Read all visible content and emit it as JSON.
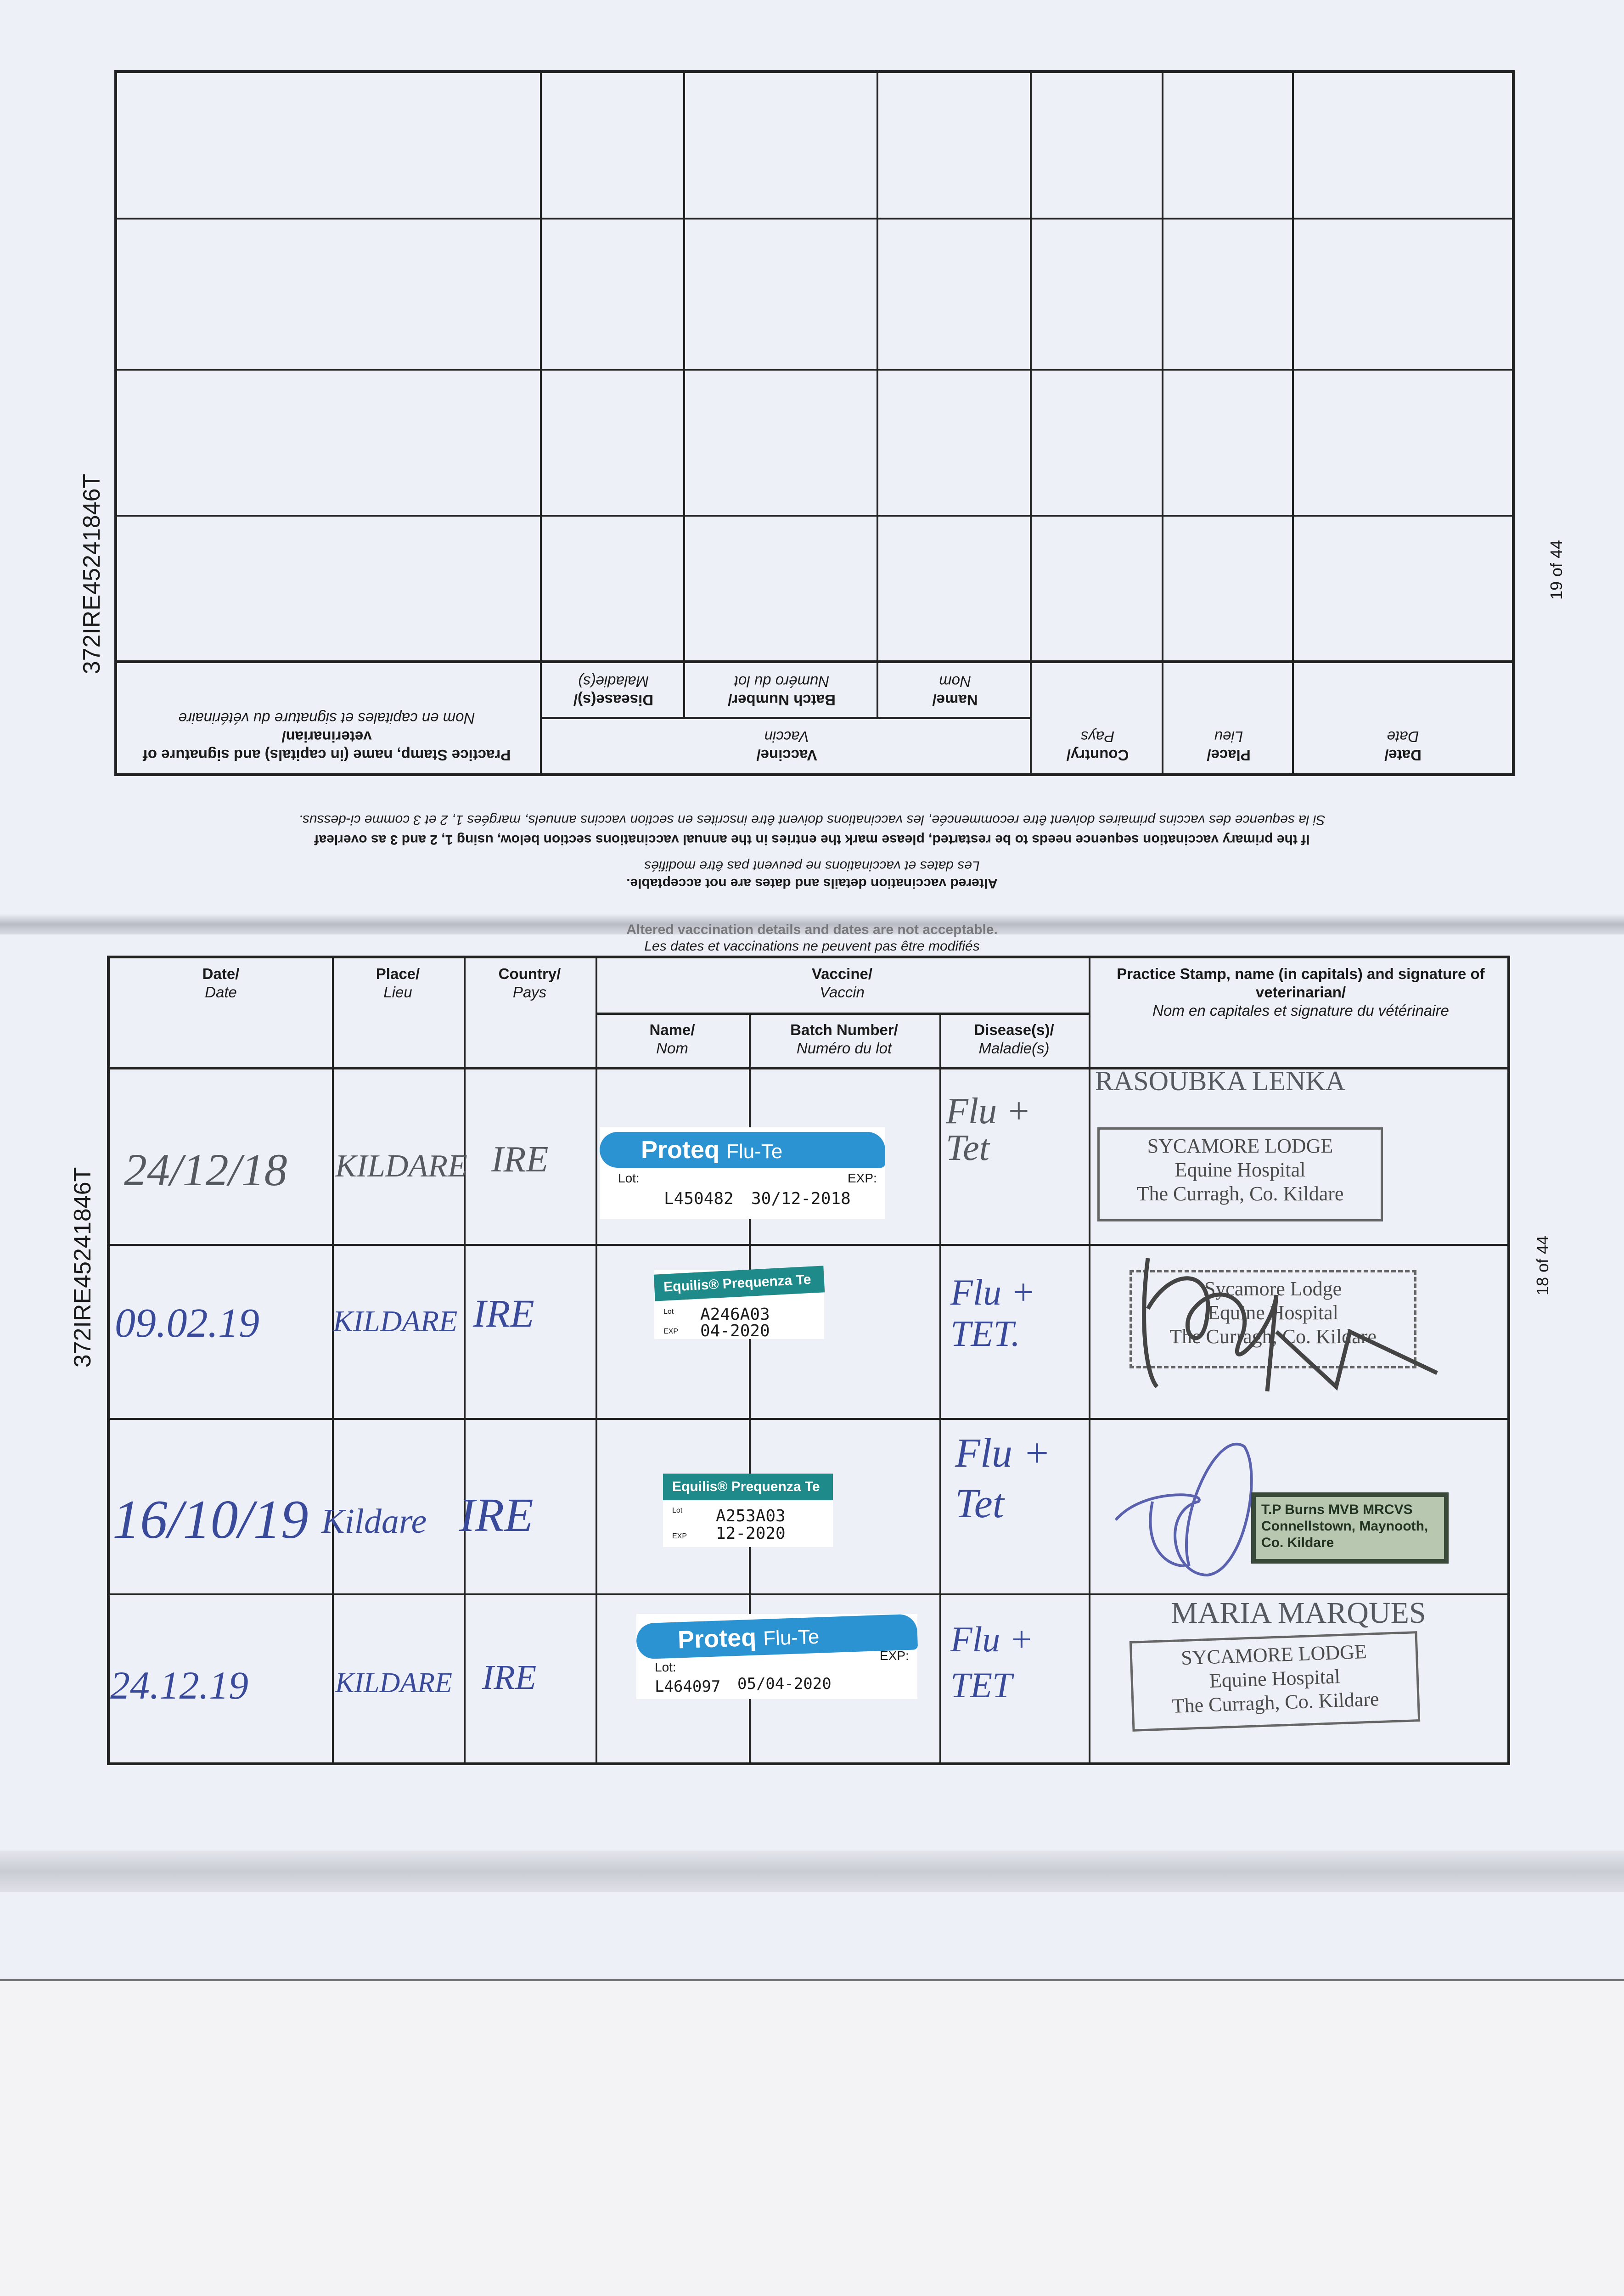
{
  "pages": {
    "top": {
      "serial": "372IRE45241846T",
      "page_label": "19 of 44"
    },
    "bottom": {
      "serial": "372IRE45241846T",
      "page_label": "18 of 44"
    }
  },
  "notes": {
    "altered_en": "Altered vaccination details and dates are not acceptable.",
    "altered_fr": "Les dates et vaccinations ne peuvent pas être modifiés",
    "restart_en": "If the primary vaccination sequence needs to be restarted, please mark the entries in the annual vaccinations section below, using 1, 2 and 3 as overleaf",
    "restart_fr": "Si la sequence des vaccins primaires doivent être recommencée, les vaccinations doivent être inscrites en section vaccins annuels, margées 1, 2 et 3 comme ci-dessus."
  },
  "table_headers": {
    "date": {
      "en": "Date/",
      "fr": "Date"
    },
    "place": {
      "en": "Place/",
      "fr": "Lieu"
    },
    "country": {
      "en": "Country/",
      "fr": "Pays"
    },
    "vaccine": {
      "en": "Vaccine/",
      "fr": "Vaccin"
    },
    "name": {
      "en": "Name/",
      "fr": "Nom"
    },
    "batch": {
      "en": "Batch Number/",
      "fr": "Numéro du lot"
    },
    "disease": {
      "en": "Disease(s)/",
      "fr": "Maladie(s)"
    },
    "practice": {
      "en": "Practice Stamp, name (in capitals) and signature of veterinarian/",
      "fr": "Nom en capitales et signature du vétérinaire"
    }
  },
  "entries": [
    {
      "date": "24/12/18",
      "place": "KILDARE",
      "country": "IRE",
      "sticker": {
        "brand": "Proteq",
        "product": "Flu-Te",
        "lot_label": "Lot:",
        "exp_label": "EXP:",
        "lot": "L450482",
        "exp": "30/12-2018",
        "color": "#2b93d1"
      },
      "diseases": "Flu + Tet",
      "vet_name": "RASOUBKA LENKA",
      "stamp": [
        "SYCAMORE LODGE",
        "Equine Hospital",
        "The Curragh, Co. Kildare"
      ]
    },
    {
      "date": "09.02.19",
      "place": "KILDARE",
      "country": "IRE",
      "sticker": {
        "brand": "Equilis® Prequenza Te",
        "lot_label": "Lot",
        "exp_label": "EXP",
        "lot": "A246A03",
        "exp": "04-2020",
        "color": "#1f8a8a"
      },
      "diseases": "Flu + TET.",
      "stamp": [
        "Sycamore Lodge",
        "Equine Hospital",
        "The Curragh, Co. Kildare"
      ]
    },
    {
      "date": "16/10/19",
      "place": "Kildare",
      "country": "IRE",
      "sticker": {
        "brand": "Equilis® Prequenza Te",
        "lot_label": "Lot",
        "exp_label": "EXP",
        "lot": "A253A03",
        "exp": "12-2020",
        "color": "#1f8a8a"
      },
      "diseases": "Flu + Tet",
      "stamp": [
        "T.P Burns MVB MRCVS",
        "Connellstown, Maynooth,",
        "Co. Kildare"
      ]
    },
    {
      "date": "24.12.19",
      "place": "KILDARE",
      "country": "IRE",
      "sticker": {
        "brand": "Proteq",
        "product": "Flu-Te",
        "lot_label": "Lot:",
        "exp_label": "EXP:",
        "lot": "L464097",
        "exp": "05/04-2020",
        "color": "#2b93d1"
      },
      "diseases": "Flu + TET",
      "vet_name": "MARIA MARQUES",
      "stamp": [
        "SYCAMORE LODGE",
        "Equine Hospital",
        "The Curragh, Co. Kildare"
      ]
    }
  ]
}
